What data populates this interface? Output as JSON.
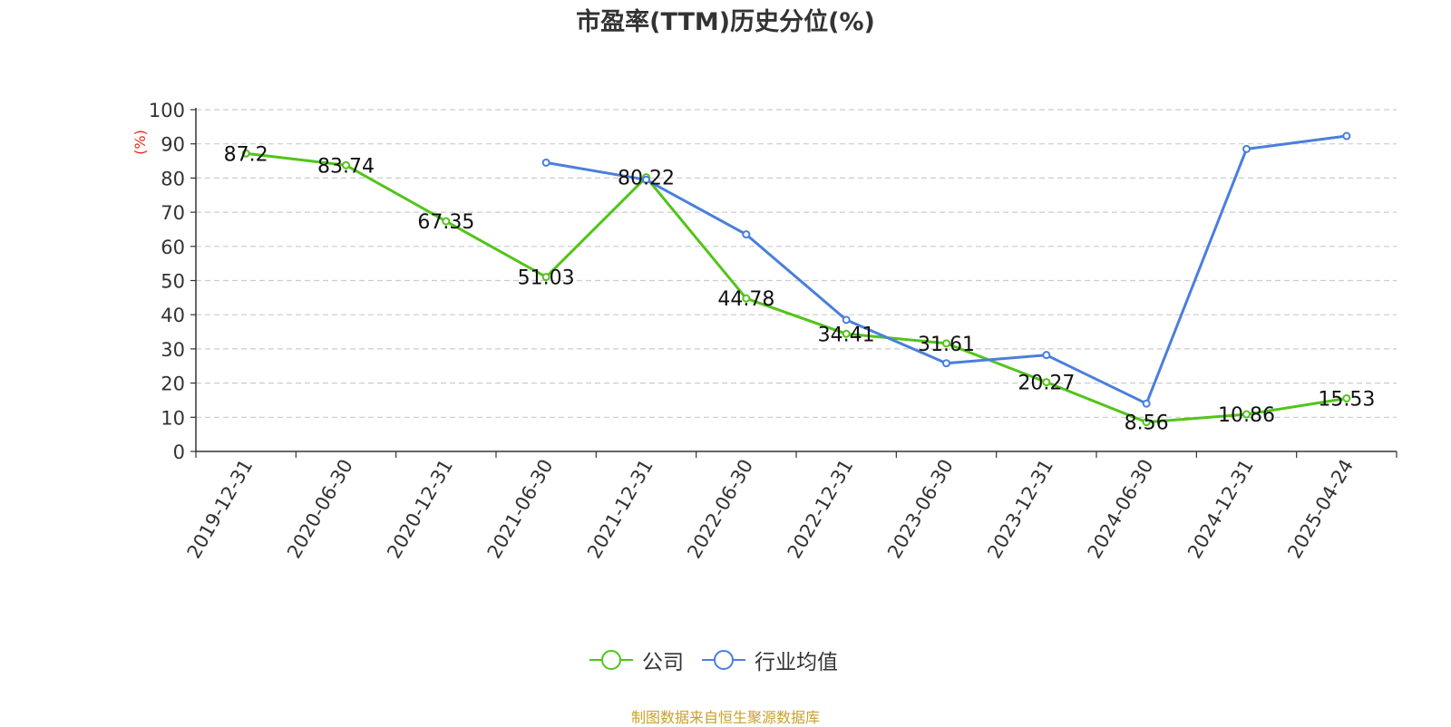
{
  "chart_data": {
    "type": "line",
    "title": "市盈率(TTM)历史分位(%)",
    "ylabel": "(%)",
    "ylim": [
      0,
      100
    ],
    "yticks": [
      0,
      10,
      20,
      30,
      40,
      50,
      60,
      70,
      80,
      90,
      100
    ],
    "grid": true,
    "legend_position": "bottom",
    "categories": [
      "2019-12-31",
      "2020-06-30",
      "2020-12-31",
      "2021-06-30",
      "2021-12-31",
      "2022-06-30",
      "2022-12-31",
      "2023-06-30",
      "2023-12-31",
      "2024-06-30",
      "2024-12-31",
      "2025-04-24"
    ],
    "series": [
      {
        "name": "公司",
        "color": "#52c41a",
        "values": [
          87.2,
          83.74,
          67.35,
          51.03,
          80.22,
          44.78,
          34.41,
          31.61,
          20.27,
          8.56,
          10.86,
          15.53
        ],
        "labels": [
          "87.2",
          "83.74",
          "67.35",
          "51.03",
          "80.22",
          "44.78",
          "34.41",
          "31.61",
          "20.27",
          "8.56",
          "10.86",
          "15.53"
        ]
      },
      {
        "name": "行业均值",
        "color": "#4a7fdb",
        "values": [
          null,
          null,
          null,
          84.5,
          79.5,
          63.5,
          38.5,
          25.8,
          28.2,
          14,
          88.5,
          92.3
        ]
      }
    ]
  },
  "source_note": "制图数据来自恒生聚源数据库"
}
